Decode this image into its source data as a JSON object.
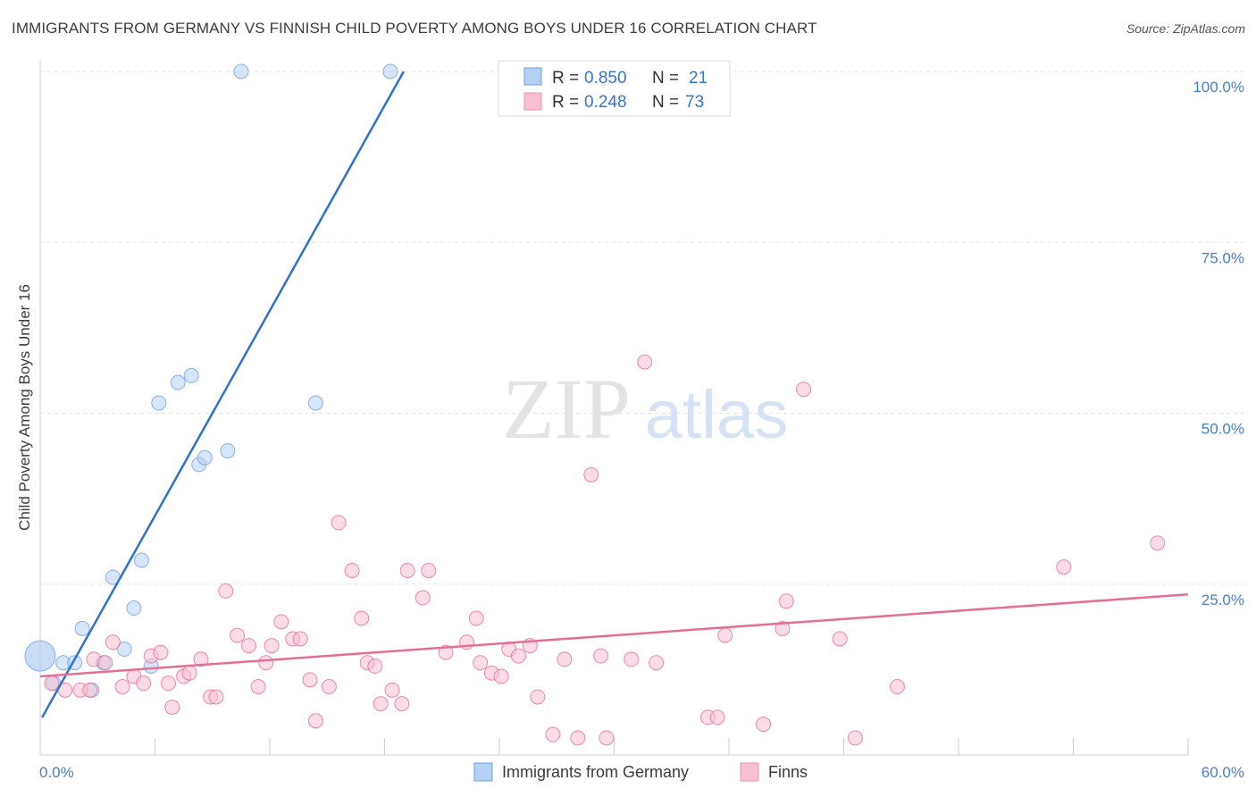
{
  "header": {
    "title": "IMMIGRANTS FROM GERMANY VS FINNISH CHILD POVERTY AMONG BOYS UNDER 16 CORRELATION CHART",
    "source": "Source: ZipAtlas.com"
  },
  "watermark": {
    "zip": "ZIP",
    "atlas": "atlas"
  },
  "legend_top": {
    "rows": [
      {
        "r_label": "R = ",
        "r_value": "0.850",
        "n_label": "N = ",
        "n_value": "21",
        "color": "#a9c8f0"
      },
      {
        "r_label": "R = ",
        "r_value": "0.248",
        "n_label": "N = ",
        "n_value": "73",
        "color": "#f7b6c9"
      }
    ]
  },
  "chart_data": {
    "type": "scatter",
    "title": "IMMIGRANTS FROM GERMANY VS FINNISH CHILD POVERTY AMONG BOYS UNDER 16 CORRELATION CHART",
    "xlabel": "",
    "ylabel": "Child Poverty Among Boys Under 16",
    "xlim": [
      0,
      60
    ],
    "ylim": [
      0,
      100
    ],
    "x_tick_labels": [
      "0.0%",
      "60.0%"
    ],
    "y_ticks": [
      25,
      50,
      75,
      100
    ],
    "y_tick_labels": [
      "25.0%",
      "50.0%",
      "75.0%",
      "100.0%"
    ],
    "grid": true,
    "legend_position": "bottom-center",
    "series": [
      {
        "name": "Immigrants from Germany",
        "color": "#6fa0df",
        "fill": "#b5d0f2",
        "trend": {
          "x": [
            0.1,
            19
          ],
          "y": [
            5.5,
            100
          ]
        },
        "points": [
          {
            "x": 0.0,
            "y": 14.5,
            "big": true
          },
          {
            "x": 0.7,
            "y": 10.5
          },
          {
            "x": 1.2,
            "y": 13.5
          },
          {
            "x": 1.8,
            "y": 13.5
          },
          {
            "x": 2.2,
            "y": 18.5
          },
          {
            "x": 2.7,
            "y": 9.5
          },
          {
            "x": 3.3,
            "y": 13.5
          },
          {
            "x": 3.8,
            "y": 26
          },
          {
            "x": 4.4,
            "y": 15.5
          },
          {
            "x": 4.9,
            "y": 21.5
          },
          {
            "x": 5.3,
            "y": 28.5
          },
          {
            "x": 5.8,
            "y": 13
          },
          {
            "x": 6.2,
            "y": 51.5
          },
          {
            "x": 7.2,
            "y": 54.5
          },
          {
            "x": 7.9,
            "y": 55.5
          },
          {
            "x": 8.3,
            "y": 42.5
          },
          {
            "x": 8.6,
            "y": 43.5
          },
          {
            "x": 9.8,
            "y": 44.5
          },
          {
            "x": 10.5,
            "y": 100
          },
          {
            "x": 14.4,
            "y": 51.5
          },
          {
            "x": 18.3,
            "y": 100
          }
        ]
      },
      {
        "name": "Finns",
        "color": "#e46f96",
        "fill": "#f7bfd1",
        "trend": {
          "x": [
            0,
            60
          ],
          "y": [
            11.5,
            23.5
          ]
        },
        "points": [
          {
            "x": 0.6,
            "y": 10.5
          },
          {
            "x": 1.3,
            "y": 9.5
          },
          {
            "x": 2.1,
            "y": 9.5
          },
          {
            "x": 2.6,
            "y": 9.5
          },
          {
            "x": 2.8,
            "y": 14
          },
          {
            "x": 3.4,
            "y": 13.5
          },
          {
            "x": 3.8,
            "y": 16.5
          },
          {
            "x": 4.3,
            "y": 10
          },
          {
            "x": 4.9,
            "y": 11.5
          },
          {
            "x": 5.4,
            "y": 10.5
          },
          {
            "x": 5.8,
            "y": 14.5
          },
          {
            "x": 6.3,
            "y": 15
          },
          {
            "x": 6.7,
            "y": 10.5
          },
          {
            "x": 6.9,
            "y": 7
          },
          {
            "x": 7.5,
            "y": 11.5
          },
          {
            "x": 7.8,
            "y": 12
          },
          {
            "x": 8.4,
            "y": 14
          },
          {
            "x": 8.9,
            "y": 8.5
          },
          {
            "x": 9.2,
            "y": 8.5
          },
          {
            "x": 9.7,
            "y": 24
          },
          {
            "x": 10.3,
            "y": 17.5
          },
          {
            "x": 10.9,
            "y": 16
          },
          {
            "x": 11.4,
            "y": 10
          },
          {
            "x": 11.8,
            "y": 13.5
          },
          {
            "x": 12.1,
            "y": 16
          },
          {
            "x": 12.6,
            "y": 19.5
          },
          {
            "x": 13.2,
            "y": 17
          },
          {
            "x": 13.6,
            "y": 17
          },
          {
            "x": 14.1,
            "y": 11
          },
          {
            "x": 14.4,
            "y": 5
          },
          {
            "x": 15.1,
            "y": 10
          },
          {
            "x": 15.6,
            "y": 34
          },
          {
            "x": 16.3,
            "y": 27
          },
          {
            "x": 16.8,
            "y": 20
          },
          {
            "x": 17.1,
            "y": 13.5
          },
          {
            "x": 17.5,
            "y": 13
          },
          {
            "x": 17.8,
            "y": 7.5
          },
          {
            "x": 18.4,
            "y": 9.5
          },
          {
            "x": 18.9,
            "y": 7.5
          },
          {
            "x": 19.2,
            "y": 27
          },
          {
            "x": 20.0,
            "y": 23
          },
          {
            "x": 20.3,
            "y": 27
          },
          {
            "x": 21.2,
            "y": 15
          },
          {
            "x": 22.3,
            "y": 16.5
          },
          {
            "x": 22.8,
            "y": 20
          },
          {
            "x": 23.0,
            "y": 13.5
          },
          {
            "x": 23.6,
            "y": 12
          },
          {
            "x": 24.1,
            "y": 11.5
          },
          {
            "x": 24.5,
            "y": 15.5
          },
          {
            "x": 25.0,
            "y": 14.5
          },
          {
            "x": 25.6,
            "y": 16
          },
          {
            "x": 26.0,
            "y": 8.5
          },
          {
            "x": 26.8,
            "y": 3
          },
          {
            "x": 27.4,
            "y": 14
          },
          {
            "x": 28.1,
            "y": 2.5
          },
          {
            "x": 28.8,
            "y": 41
          },
          {
            "x": 29.3,
            "y": 14.5
          },
          {
            "x": 29.6,
            "y": 2.5
          },
          {
            "x": 30.9,
            "y": 14
          },
          {
            "x": 31.6,
            "y": 57.5
          },
          {
            "x": 32.2,
            "y": 13.5
          },
          {
            "x": 34.9,
            "y": 5.5
          },
          {
            "x": 35.4,
            "y": 5.5
          },
          {
            "x": 35.8,
            "y": 17.5
          },
          {
            "x": 37.8,
            "y": 4.5
          },
          {
            "x": 38.8,
            "y": 18.5
          },
          {
            "x": 39.0,
            "y": 22.5
          },
          {
            "x": 39.9,
            "y": 53.5
          },
          {
            "x": 41.8,
            "y": 17
          },
          {
            "x": 42.6,
            "y": 2.5
          },
          {
            "x": 44.8,
            "y": 10
          },
          {
            "x": 53.5,
            "y": 27.5
          },
          {
            "x": 58.4,
            "y": 31
          }
        ]
      }
    ]
  }
}
